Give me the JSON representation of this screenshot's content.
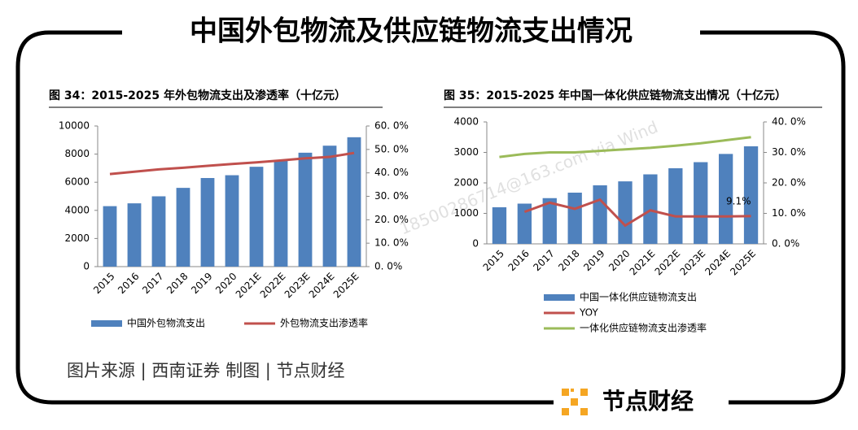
{
  "title": "中国外包物流及供应链物流支出情况",
  "source": "图片来源 | 西南证券    制图 | 节点财经",
  "brand": "节点财经",
  "watermark": "18500286714@163.com via Wind",
  "chart_data": [
    {
      "type": "bar",
      "title": "图 34：2015-2025 年外包物流支出及渗透率（十亿元）",
      "categories": [
        "2015",
        "2016",
        "2017",
        "2018",
        "2019",
        "2020",
        "2021E",
        "2022E",
        "2023E",
        "2024E",
        "2025E"
      ],
      "series": [
        {
          "name": "中国外包物流支出",
          "type": "bar",
          "color": "#4f81bd",
          "values": [
            4300,
            4500,
            5000,
            5600,
            6300,
            6500,
            7100,
            7600,
            8100,
            8600,
            9200
          ]
        },
        {
          "name": "外包物流支出渗透率",
          "type": "line",
          "axis": "y2",
          "color": "#c0504d",
          "values": [
            39.5,
            40.5,
            41.5,
            42.2,
            43,
            43.8,
            44.5,
            45.3,
            46.2,
            46.8,
            48.5
          ]
        }
      ],
      "ylim": [
        0,
        10000
      ],
      "yticks": [
        0,
        2000,
        4000,
        6000,
        8000,
        10000
      ],
      "y2lim": [
        0,
        60
      ],
      "y2ticks": [
        {
          "value": 0,
          "label": "0. 0%"
        },
        {
          "value": 10,
          "label": "10. 0%"
        },
        {
          "value": 20,
          "label": "20. 0%"
        },
        {
          "value": 30,
          "label": "30. 0%"
        },
        {
          "value": 40,
          "label": "40. 0%"
        },
        {
          "value": 50,
          "label": "50. 0%"
        },
        {
          "value": 60,
          "label": "60. 0%"
        }
      ],
      "legend": "bottom-row"
    },
    {
      "type": "bar",
      "title": "图 35：2015-2025 年中国一体化供应链物流支出情况（十亿元）",
      "categories": [
        "2015",
        "2016",
        "2017",
        "2018",
        "2019",
        "2020",
        "2021E",
        "2022E",
        "2023E",
        "2024E",
        "2025E"
      ],
      "series": [
        {
          "name": "中国一体化供应链物流支出",
          "type": "bar",
          "color": "#4f81bd",
          "values": [
            1200,
            1320,
            1500,
            1680,
            1920,
            2050,
            2280,
            2480,
            2680,
            2950,
            3200
          ]
        },
        {
          "name": "YOY",
          "type": "line",
          "axis": "y2",
          "color": "#c0504d",
          "values": [
            null,
            10.5,
            13.5,
            11.5,
            14.5,
            6,
            11,
            9,
            9,
            9,
            9.1
          ],
          "value_labels": [
            null,
            null,
            null,
            null,
            null,
            null,
            null,
            null,
            null,
            null,
            "9.1%"
          ]
        },
        {
          "name": "一体化供应链物流支出渗透率",
          "type": "line",
          "axis": "y2",
          "color": "#9bbb59",
          "values": [
            28.5,
            29.5,
            30,
            30,
            30.5,
            31,
            31.5,
            32.2,
            33,
            34,
            35
          ]
        }
      ],
      "ylim": [
        0,
        4000
      ],
      "yticks": [
        0,
        1000,
        2000,
        3000,
        4000
      ],
      "y2lim": [
        0,
        40
      ],
      "y2ticks": [
        {
          "value": 0,
          "label": "0. 0%"
        },
        {
          "value": 10,
          "label": "10. 0%"
        },
        {
          "value": 20,
          "label": "20. 0%"
        },
        {
          "value": 30,
          "label": "30. 0%"
        },
        {
          "value": 40,
          "label": "40. 0%"
        }
      ],
      "legend": "bottom-column"
    }
  ]
}
